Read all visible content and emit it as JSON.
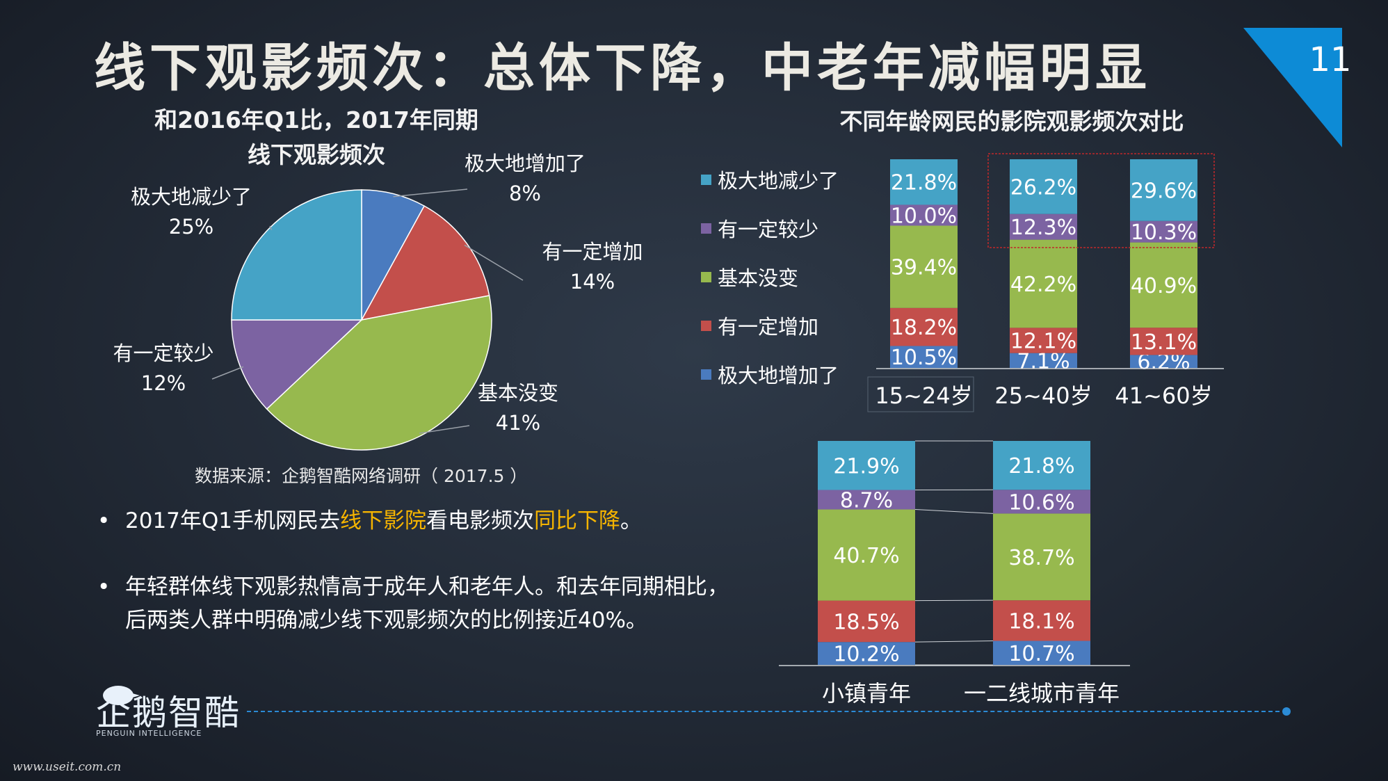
{
  "title": "线下观影频次：总体下降，中老年减幅明显",
  "page_number": "11",
  "colors": {
    "blue": "#4a7bbf",
    "red": "#c34f4b",
    "green": "#97b94e",
    "purple": "#7c63a2",
    "cyan": "#45a3c6",
    "accent": "#0d8bd6",
    "highlight": "#f5b400"
  },
  "pie": {
    "title_line1": "和2016年Q1比，2017年同期",
    "title_line2": "线下观影频次",
    "source": "数据来源：企鹅智酷网络调研（ 2017.5 ）"
  },
  "bar": {
    "title": "不同年龄网民的影院观影频次对比"
  },
  "bullets": {
    "b1_pre": "2017年Q1手机网民去",
    "b1_hl1": "线下影院",
    "b1_mid": "看电影频次",
    "b1_hl2": "同比下降",
    "b1_post": "。",
    "b2": "年轻群体线下观影热情高于成年人和老年人。和去年同期相比，后两类人群中明确减少线下观影频次的比例接近40%。"
  },
  "logo": {
    "text": "企鹅智酷",
    "sub": "PENGUIN INTELLIGENCE"
  },
  "watermark": "www.useit.com.cn",
  "chart_data": [
    {
      "type": "pie",
      "title": "和2016年Q1比，2017年同期线下观影频次",
      "slices": [
        {
          "label": "极大地增加了",
          "value": 8,
          "display": "8%",
          "color": "#4a7bbf"
        },
        {
          "label": "有一定增加",
          "value": 14,
          "display": "14%",
          "color": "#c34f4b"
        },
        {
          "label": "基本没变",
          "value": 41,
          "display": "41%",
          "color": "#97b94e"
        },
        {
          "label": "有一定较少",
          "value": 12,
          "display": "12%",
          "color": "#7c63a2"
        },
        {
          "label": "极大地减少了",
          "value": 25,
          "display": "25%",
          "color": "#45a3c6"
        }
      ]
    },
    {
      "type": "bar",
      "stacked": true,
      "title": "不同年龄网民的影院观影频次对比",
      "categories": [
        "15~24岁",
        "25~40岁",
        "41~60岁"
      ],
      "series": [
        {
          "name": "极大地增加了",
          "color": "#4a7bbf",
          "values": [
            10.5,
            7.1,
            6.2
          ]
        },
        {
          "name": "有一定增加",
          "color": "#c34f4b",
          "values": [
            18.2,
            12.1,
            13.1
          ]
        },
        {
          "name": "基本没变",
          "color": "#97b94e",
          "values": [
            39.4,
            42.2,
            40.9
          ]
        },
        {
          "name": "有一定较少",
          "color": "#7c63a2",
          "values": [
            10.0,
            12.3,
            10.3
          ]
        },
        {
          "name": "极大地减少了",
          "color": "#45a3c6",
          "values": [
            21.8,
            26.2,
            29.6
          ]
        }
      ],
      "legend_position": "left"
    },
    {
      "type": "bar",
      "stacked": true,
      "categories": [
        "小镇青年",
        "一二线城市青年"
      ],
      "series": [
        {
          "name": "极大地增加了",
          "color": "#4a7bbf",
          "values": [
            10.2,
            10.7
          ]
        },
        {
          "name": "有一定增加",
          "color": "#c34f4b",
          "values": [
            18.5,
            18.1
          ]
        },
        {
          "name": "基本没变",
          "color": "#97b94e",
          "values": [
            40.7,
            38.7
          ]
        },
        {
          "name": "有一定较少",
          "color": "#7c63a2",
          "values": [
            8.7,
            10.6
          ]
        },
        {
          "name": "极大地减少了",
          "color": "#45a3c6",
          "values": [
            21.9,
            21.8
          ]
        }
      ]
    }
  ]
}
